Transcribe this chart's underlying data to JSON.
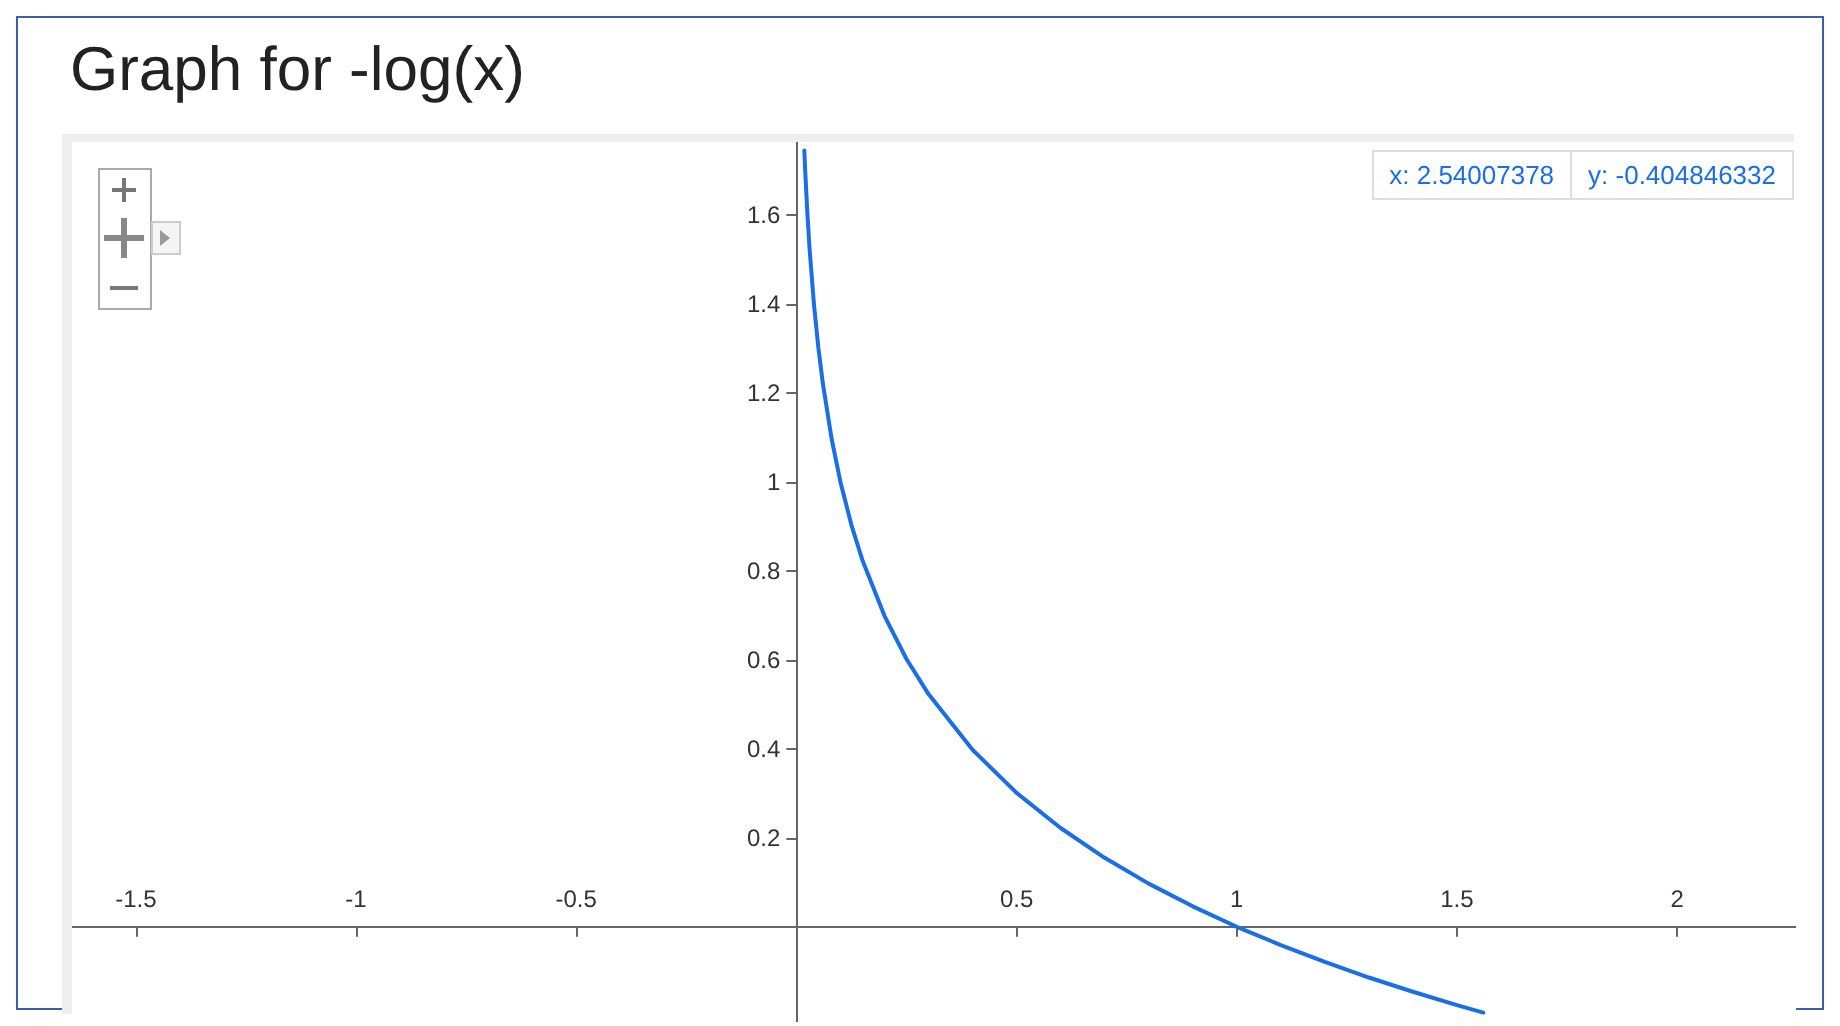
{
  "chart_data": {
    "type": "line",
    "title": "Graph for -log(x)",
    "annotations": [
      "x: 2.54007378",
      "y: -0.404846332"
    ],
    "series": [
      {
        "color": "#1a6ee6",
        "x": [
          0.018,
          0.02,
          0.025,
          0.03,
          0.04,
          0.05,
          0.06,
          0.08,
          0.1,
          0.125,
          0.15,
          0.2,
          0.25,
          0.3,
          0.4,
          0.5,
          0.6,
          0.7,
          0.8,
          0.9,
          1,
          1.1,
          1.2,
          1.3,
          1.4,
          1.5,
          1.56
        ],
        "values": [
          1.745,
          1.699,
          1.602,
          1.523,
          1.398,
          1.301,
          1.222,
          1.097,
          1,
          0.903,
          0.824,
          0.699,
          0.602,
          0.523,
          0.398,
          0.301,
          0.222,
          0.155,
          0.097,
          0.046,
          0,
          -0.041,
          -0.079,
          -0.114,
          -0.146,
          -0.176,
          -0.193
        ]
      }
    ],
    "xlim": [
      -1.645,
      2.27
    ],
    "xticks": [
      -1.5,
      -1,
      -0.5,
      0.5,
      1,
      1.5,
      2
    ],
    "ylim": [
      -0.214,
      1.764
    ],
    "yticks": [
      0.2,
      0.4,
      0.6,
      0.8,
      1,
      1.2,
      1.4,
      1.6
    ],
    "grid": false,
    "marker": "none",
    "line_style": "solid"
  }
}
